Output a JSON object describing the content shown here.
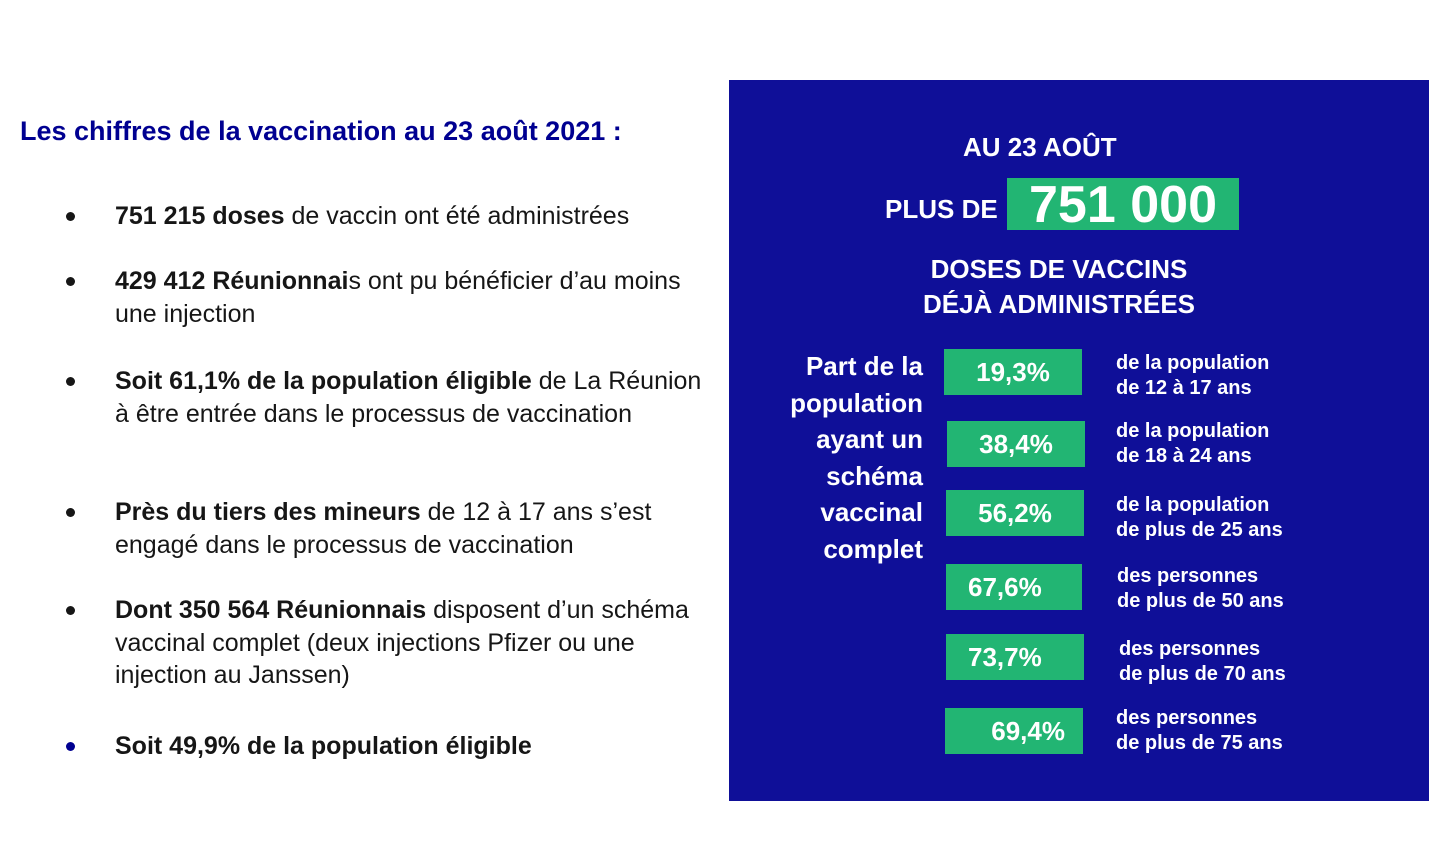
{
  "left": {
    "title": "Les chiffres de la vaccination au 23 août 2021 :",
    "bullets": [
      {
        "bold": "751 215 doses",
        "rest": " de vaccin ont été administrées"
      },
      {
        "bold": "429 412 Réunionnai",
        "rest": "s ont pu bénéficier d’au moins une injection"
      },
      {
        "bold": "Soit 61,1% de la population éligible",
        "rest": " de La Réunion à être entrée dans le processus de vaccination"
      },
      {
        "bold": "Près du tiers des mineurs",
        "rest": " de 12 à 17 ans s’est engagé dans le processus de vaccination"
      },
      {
        "bold": "Dont 350 564 Réunionnais",
        "rest": " disposent d’un schéma vaccinal complet (deux injections Pfizer ou une injection au Janssen)"
      },
      {
        "bold": "Soit 49,9% de la population éligible",
        "rest": ""
      }
    ]
  },
  "infographic": {
    "date_line": "AU 23 AOÛT",
    "plus_label": "PLUS DE",
    "big_number": "751 000",
    "doses_line1": "DOSES DE VACCINS",
    "doses_line2": "DÉJÀ ADMINISTRÉES",
    "side_label": [
      "Part de la",
      "population",
      "ayant un",
      "schéma",
      "vaccinal",
      "complet"
    ],
    "rates": [
      {
        "value": "19,3%",
        "line1": "de la population",
        "line2": "de 12 à 17 ans"
      },
      {
        "value": "38,4%",
        "line1": "de la population",
        "line2": "de 18 à 24 ans"
      },
      {
        "value": "56,2%",
        "line1": "de la population",
        "line2": "de plus de 25 ans"
      },
      {
        "value": "67,6%",
        "line1": "des personnes",
        "line2": "de plus de 50 ans"
      },
      {
        "value": "73,7%",
        "line1": "des personnes",
        "line2": "de plus de 70 ans"
      },
      {
        "value": "69,4%",
        "line1": "des personnes",
        "line2": "de plus de 75 ans"
      }
    ],
    "colors": {
      "panel": "#0f0f98",
      "highlight": "#22b573",
      "title": "#000091"
    }
  }
}
